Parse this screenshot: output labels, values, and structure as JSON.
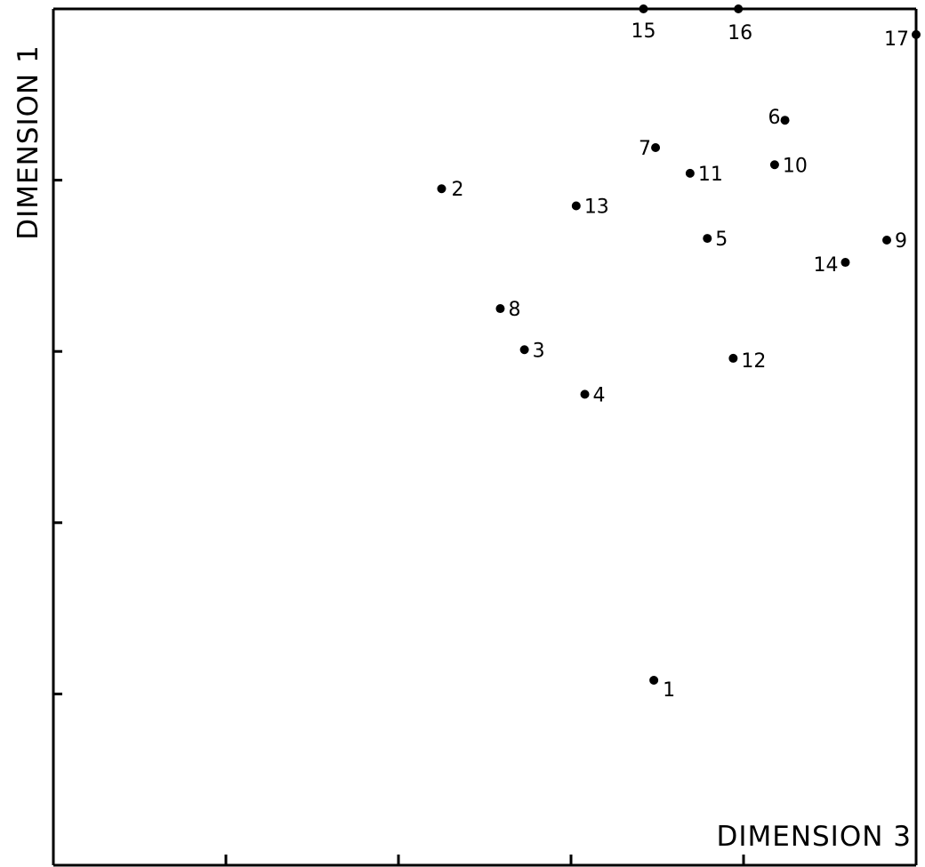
{
  "chart_data": {
    "type": "scatter",
    "title": "",
    "xlabel": "DIMENSION 3",
    "ylabel": "DIMENSION 1",
    "xlim": [
      0,
      5
    ],
    "ylim": [
      0,
      5
    ],
    "grid": false,
    "legend": "none",
    "points": [
      {
        "label": "1",
        "x": 3.48,
        "y": 1.08
      },
      {
        "label": "2",
        "x": 2.25,
        "y": 3.95
      },
      {
        "label": "3",
        "x": 2.73,
        "y": 3.01
      },
      {
        "label": "4",
        "x": 3.08,
        "y": 2.75
      },
      {
        "label": "5",
        "x": 3.79,
        "y": 3.66
      },
      {
        "label": "6",
        "x": 4.24,
        "y": 4.35
      },
      {
        "label": "7",
        "x": 3.49,
        "y": 4.19
      },
      {
        "label": "8",
        "x": 2.59,
        "y": 3.25
      },
      {
        "label": "9",
        "x": 4.83,
        "y": 3.65
      },
      {
        "label": "10",
        "x": 4.18,
        "y": 4.09
      },
      {
        "label": "11",
        "x": 3.69,
        "y": 4.04
      },
      {
        "label": "12",
        "x": 3.94,
        "y": 2.96
      },
      {
        "label": "13",
        "x": 3.03,
        "y": 3.85
      },
      {
        "label": "14",
        "x": 4.59,
        "y": 3.52
      },
      {
        "label": "15",
        "x": 3.42,
        "y": 5.0
      },
      {
        "label": "16",
        "x": 3.97,
        "y": 5.0
      },
      {
        "label": "17",
        "x": 5.0,
        "y": 4.85
      }
    ]
  }
}
